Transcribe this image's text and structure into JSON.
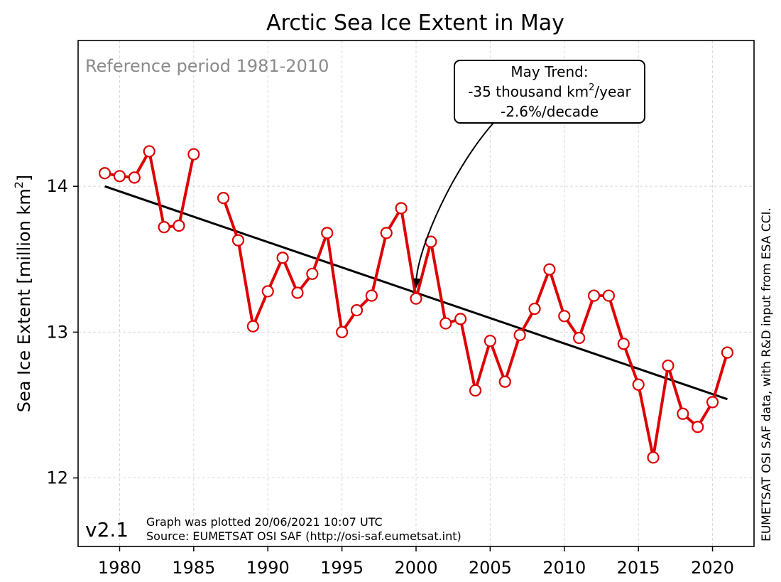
{
  "chart_data": {
    "type": "line",
    "title": "Arctic Sea Ice Extent in May",
    "ylabel": "Sea Ice Extent [million km²]",
    "ylabel_main": "Sea Ice Extent [million km",
    "ylabel_sup": "2",
    "ylabel_close": "]",
    "xlabel": "",
    "xlim": [
      1977.2,
      2022.8
    ],
    "ylim": [
      11.53,
      15.0
    ],
    "x_ticks": [
      1980,
      1985,
      1990,
      1995,
      2000,
      2005,
      2010,
      2015,
      2020
    ],
    "y_ticks": [
      12,
      13,
      14
    ],
    "grid": true,
    "series": [
      {
        "color": "#dd0000",
        "marker": "hollow-circle",
        "segments": [
          {
            "x": [
              1979,
              1980,
              1981,
              1982,
              1983,
              1984,
              1985
            ],
            "y": [
              14.09,
              14.07,
              14.06,
              14.24,
              13.72,
              13.73,
              14.22
            ]
          },
          {
            "x": [
              1987,
              1988,
              1989,
              1990,
              1991,
              1992,
              1993,
              1994,
              1995,
              1996,
              1997,
              1998,
              1999,
              2000,
              2001,
              2002,
              2003,
              2004,
              2005,
              2006,
              2007,
              2008,
              2009,
              2010,
              2011,
              2012,
              2013,
              2014,
              2015,
              2016,
              2017,
              2018,
              2019,
              2020,
              2021
            ],
            "y": [
              13.92,
              13.63,
              13.04,
              13.28,
              13.51,
              13.27,
              13.4,
              13.68,
              13.0,
              13.15,
              13.25,
              13.68,
              13.85,
              13.23,
              13.62,
              13.06,
              13.09,
              12.6,
              12.94,
              12.66,
              12.98,
              13.16,
              13.43,
              13.11,
              12.96,
              13.25,
              13.25,
              12.92,
              12.64,
              12.14,
              12.77,
              12.44,
              12.35,
              12.52,
              12.86
            ]
          }
        ]
      }
    ],
    "trend": {
      "color": "#000000",
      "x": [
        1979,
        2021
      ],
      "y": [
        14.0,
        12.54
      ]
    },
    "annotations": {
      "reference_period": "Reference period 1981-2010",
      "trend_box": {
        "line1": "May Trend:",
        "line2_main": "-35 thousand km",
        "line2_sup": "2",
        "line2_end": "/year",
        "line3": "-2.6%/decade",
        "arrow_target": {
          "x": 2000,
          "y": 13.29
        }
      },
      "version": "v2.1",
      "plotted": "Graph was plotted 20/06/2021 10:07 UTC",
      "source": "Source: EUMETSAT OSI SAF (http://osi-saf.eumetsat.int)",
      "side_credit": "EUMETSAT OSI SAF data, with R&D input from ESA CCI."
    }
  }
}
